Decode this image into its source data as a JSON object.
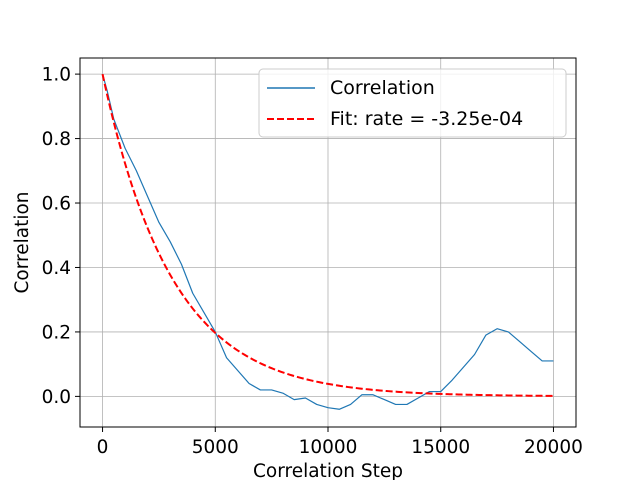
{
  "chart_data": {
    "type": "line",
    "title": "",
    "xlabel": "Correlation Step",
    "ylabel": "Correlation",
    "xlim": [
      -1000,
      21000
    ],
    "ylim": [
      -0.095,
      1.05
    ],
    "x_ticks": [
      0,
      5000,
      10000,
      15000,
      20000
    ],
    "x_tick_labels": [
      "0",
      "5000",
      "10000",
      "15000",
      "20000"
    ],
    "y_ticks": [
      0.0,
      0.2,
      0.4,
      0.6,
      0.8,
      1.0
    ],
    "y_tick_labels": [
      "0.0",
      "0.2",
      "0.4",
      "0.6",
      "0.8",
      "1.0"
    ],
    "grid": true,
    "legend_position": "upper right",
    "series": [
      {
        "name": "Correlation",
        "color": "#1f77b4",
        "style": "solid",
        "points": [
          [
            0,
            1.0
          ],
          [
            200,
            0.95
          ],
          [
            500,
            0.86
          ],
          [
            1000,
            0.77
          ],
          [
            1500,
            0.7
          ],
          [
            2000,
            0.62
          ],
          [
            2500,
            0.54
          ],
          [
            3000,
            0.48
          ],
          [
            3500,
            0.41
          ],
          [
            4000,
            0.32
          ],
          [
            4500,
            0.26
          ],
          [
            5000,
            0.2
          ],
          [
            5500,
            0.12
          ],
          [
            6000,
            0.08
          ],
          [
            6500,
            0.04
          ],
          [
            7000,
            0.02
          ],
          [
            7500,
            0.02
          ],
          [
            8000,
            0.01
          ],
          [
            8500,
            -0.01
          ],
          [
            9000,
            -0.005
          ],
          [
            9500,
            -0.025
          ],
          [
            10000,
            -0.035
          ],
          [
            10500,
            -0.04
          ],
          [
            11000,
            -0.025
          ],
          [
            11500,
            0.005
          ],
          [
            12000,
            0.005
          ],
          [
            12500,
            -0.01
          ],
          [
            13000,
            -0.025
          ],
          [
            13500,
            -0.025
          ],
          [
            14000,
            -0.005
          ],
          [
            14500,
            0.015
          ],
          [
            15000,
            0.015
          ],
          [
            15500,
            0.05
          ],
          [
            16000,
            0.09
          ],
          [
            16500,
            0.13
          ],
          [
            17000,
            0.19
          ],
          [
            17500,
            0.21
          ],
          [
            18000,
            0.2
          ],
          [
            18500,
            0.17
          ],
          [
            19000,
            0.14
          ],
          [
            19500,
            0.11
          ],
          [
            20000,
            0.11
          ]
        ]
      },
      {
        "name": "Fit: rate = -3.25e-04",
        "color": "#ff0000",
        "style": "dashed",
        "function": "exp(-3.25e-4 * x)",
        "x_range": [
          0,
          20000
        ]
      }
    ]
  }
}
